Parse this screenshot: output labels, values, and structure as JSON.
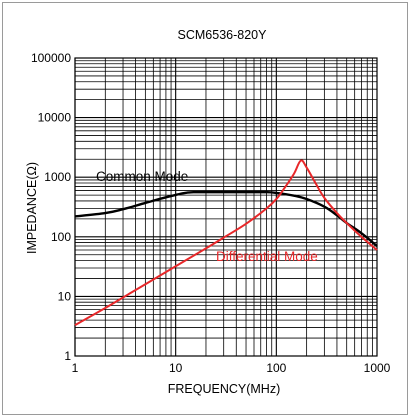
{
  "chart_data": {
    "type": "line",
    "title": "SCM6536-820Y",
    "xlabel": "FREQUENCY(MHz)",
    "ylabel": "IMPEDANCE(Ω)",
    "x_scale": "log",
    "y_scale": "log",
    "xlim": [
      1,
      1000
    ],
    "ylim": [
      1,
      100000
    ],
    "grid": true,
    "x_ticks": [
      "1",
      "10",
      "100",
      "1000"
    ],
    "y_ticks": [
      "1",
      "10",
      "100",
      "1000",
      "10000",
      "100000"
    ],
    "series": [
      {
        "name": "Common Mode",
        "color": "#000000",
        "x": [
          1,
          2,
          3,
          5,
          8,
          12,
          15,
          20,
          30,
          50,
          80,
          100,
          150,
          200,
          300,
          400,
          500,
          700,
          1000
        ],
        "y": [
          220,
          250,
          290,
          370,
          460,
          540,
          560,
          560,
          560,
          560,
          560,
          545,
          490,
          430,
          320,
          230,
          170,
          115,
          70
        ]
      },
      {
        "name": "Differential Mode",
        "color": "#e8282a",
        "x": [
          1,
          2,
          3,
          5,
          10,
          20,
          30,
          50,
          80,
          100,
          120,
          150,
          175,
          200,
          250,
          300,
          400,
          500,
          700,
          1000
        ],
        "y": [
          3.3,
          6.4,
          9.6,
          16,
          32,
          64,
          97,
          165,
          300,
          430,
          650,
          1150,
          1900,
          1450,
          750,
          450,
          250,
          170,
          100,
          60
        ]
      }
    ],
    "annotations": [
      "Common Mode",
      "Differential Mode"
    ]
  }
}
